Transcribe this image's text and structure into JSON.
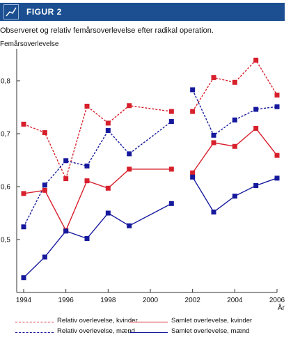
{
  "header": {
    "figure_label": "FIGUR 2",
    "icon": "line-chart-icon"
  },
  "chart_data": {
    "type": "line",
    "title": "Observeret og relativ femårsoverlevelse efter radikal operation.",
    "ylabel": "Femårsoverlevelse",
    "xlabel": "År",
    "xlim": [
      1994,
      2006
    ],
    "ylim": [
      0.4,
      0.85
    ],
    "xticks": [
      "1994",
      "1996",
      "1998",
      "2000",
      "2002",
      "2004",
      "2006"
    ],
    "yticks": [
      "0,5",
      "0,6",
      "0,7",
      "0,8"
    ],
    "grid": false,
    "legend_position": "bottom",
    "series": [
      {
        "name": "Relativ overlevelse, kvinder",
        "color": "#d7202c",
        "dash": "dashed",
        "segments": [
          [
            [
              1994,
              0.718
            ],
            [
              1995,
              0.702
            ],
            [
              1996,
              0.615
            ],
            [
              1997,
              0.752
            ],
            [
              1998,
              0.72
            ],
            [
              1999,
              0.753
            ],
            [
              2001,
              0.742
            ]
          ],
          [
            [
              2002,
              0.742
            ],
            [
              2003,
              0.806
            ],
            [
              2004,
              0.797
            ],
            [
              2005,
              0.839
            ],
            [
              2006,
              0.773
            ]
          ]
        ]
      },
      {
        "name": "Relativ overlevelse, mænd",
        "color": "#16199c",
        "dash": "dashed",
        "segments": [
          [
            [
              1994,
              0.524
            ],
            [
              1995,
              0.603
            ],
            [
              1996,
              0.649
            ],
            [
              1997,
              0.639
            ],
            [
              1998,
              0.706
            ],
            [
              1999,
              0.662
            ],
            [
              2001,
              0.723
            ]
          ],
          [
            [
              2002,
              0.783
            ],
            [
              2003,
              0.697
            ],
            [
              2004,
              0.726
            ],
            [
              2005,
              0.746
            ],
            [
              2006,
              0.751
            ]
          ]
        ]
      },
      {
        "name": "Samlet overlevelse, kvinder",
        "color": "#d7202c",
        "dash": "solid",
        "segments": [
          [
            [
              1994,
              0.587
            ],
            [
              1995,
              0.593
            ],
            [
              1996,
              0.517
            ],
            [
              1997,
              0.611
            ],
            [
              1998,
              0.597
            ],
            [
              1999,
              0.633
            ],
            [
              2001,
              0.633
            ]
          ],
          [
            [
              2002,
              0.626
            ],
            [
              2003,
              0.683
            ],
            [
              2004,
              0.676
            ],
            [
              2005,
              0.71
            ],
            [
              2006,
              0.659
            ]
          ]
        ]
      },
      {
        "name": "Samlet overlevelse, mænd",
        "color": "#16199c",
        "dash": "solid",
        "segments": [
          [
            [
              1994,
              0.428
            ],
            [
              1995,
              0.467
            ],
            [
              1996,
              0.516
            ],
            [
              1997,
              0.502
            ],
            [
              1998,
              0.55
            ],
            [
              1999,
              0.526
            ],
            [
              2001,
              0.568
            ]
          ],
          [
            [
              2002,
              0.618
            ],
            [
              2003,
              0.552
            ],
            [
              2004,
              0.582
            ],
            [
              2005,
              0.602
            ],
            [
              2006,
              0.616
            ]
          ]
        ]
      }
    ]
  },
  "legend": [
    {
      "label": "Relativ overlevelse, kvinder",
      "color": "#d7202c",
      "dash": "dashed"
    },
    {
      "label": "Samlet overlevelse, kvinder",
      "color": "#d7202c",
      "dash": "solid"
    },
    {
      "label": "Relativ overlevelse, mænd",
      "color": "#16199c",
      "dash": "dashed"
    },
    {
      "label": "Samlet overlevelse, mænd",
      "color": "#16199c",
      "dash": "solid"
    }
  ]
}
